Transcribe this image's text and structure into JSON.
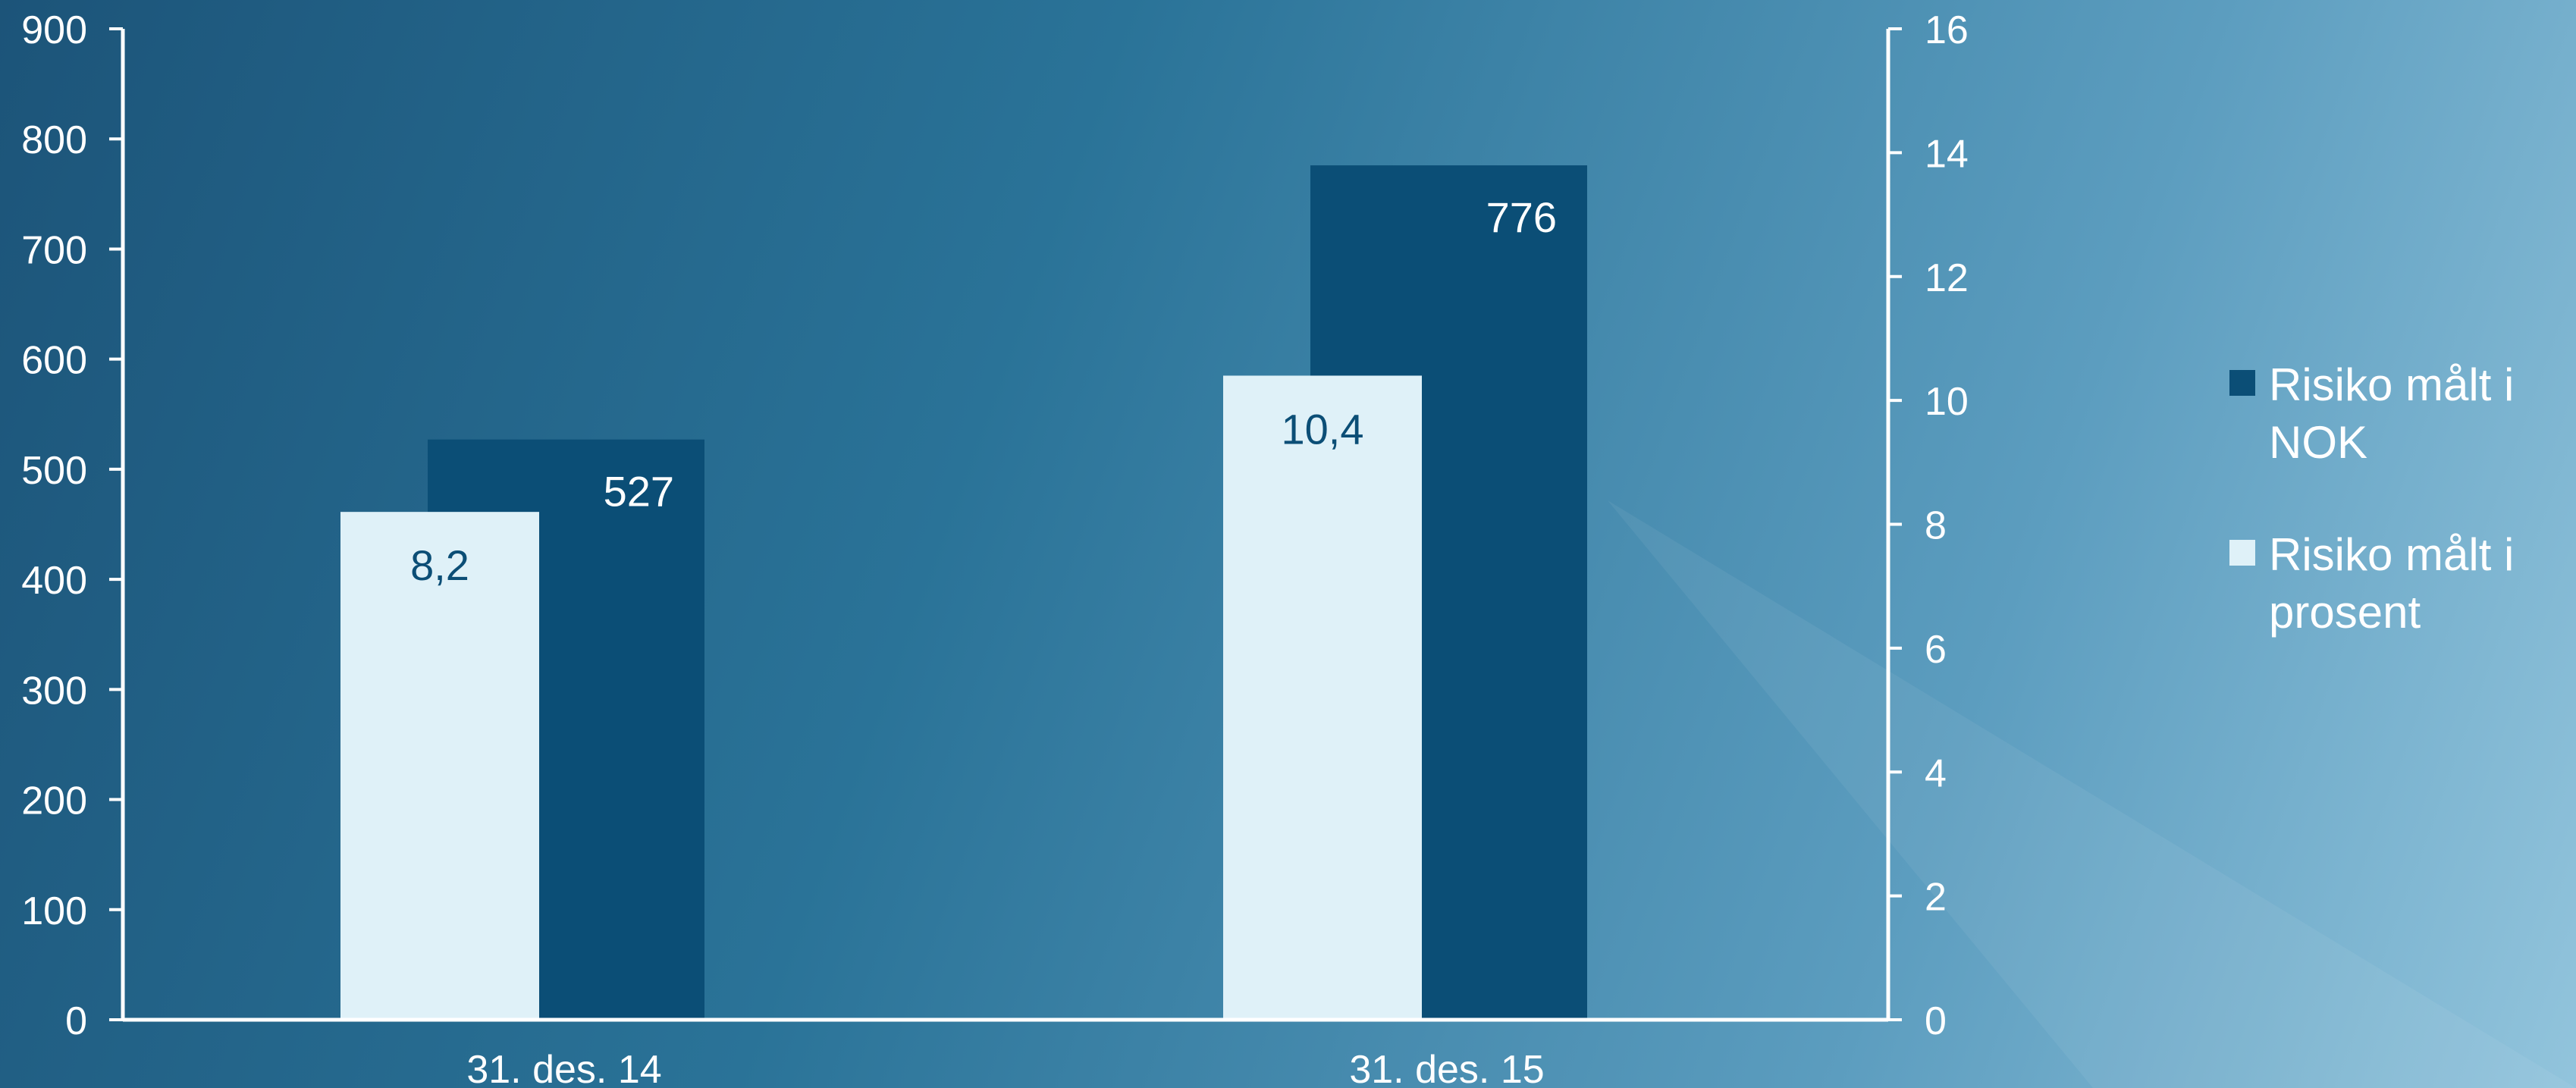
{
  "chart_data": {
    "type": "bar",
    "categories": [
      "31. des. 14",
      "31. des. 15"
    ],
    "series": [
      {
        "name": "Risiko målt i NOK",
        "values": [
          527,
          776
        ],
        "axis": "left",
        "color": "#0b4e76",
        "label_color": "#ffffff",
        "labels": [
          "527",
          "776"
        ]
      },
      {
        "name": "Risiko målt i prosent",
        "values": [
          8.2,
          10.4
        ],
        "axis": "right",
        "color": "#dff1f8",
        "label_color": "#0b4e76",
        "labels": [
          "8,2",
          "10,4"
        ]
      }
    ],
    "y_left": {
      "min": 0,
      "max": 900,
      "ticks": [
        "0",
        "100",
        "200",
        "300",
        "400",
        "500",
        "600",
        "700",
        "800",
        "900"
      ]
    },
    "y_right": {
      "min": 0,
      "max": 16,
      "ticks": [
        "0",
        "2",
        "4",
        "6",
        "8",
        "10",
        "12",
        "14",
        "16"
      ]
    },
    "legend_position": "right",
    "grid": false
  }
}
